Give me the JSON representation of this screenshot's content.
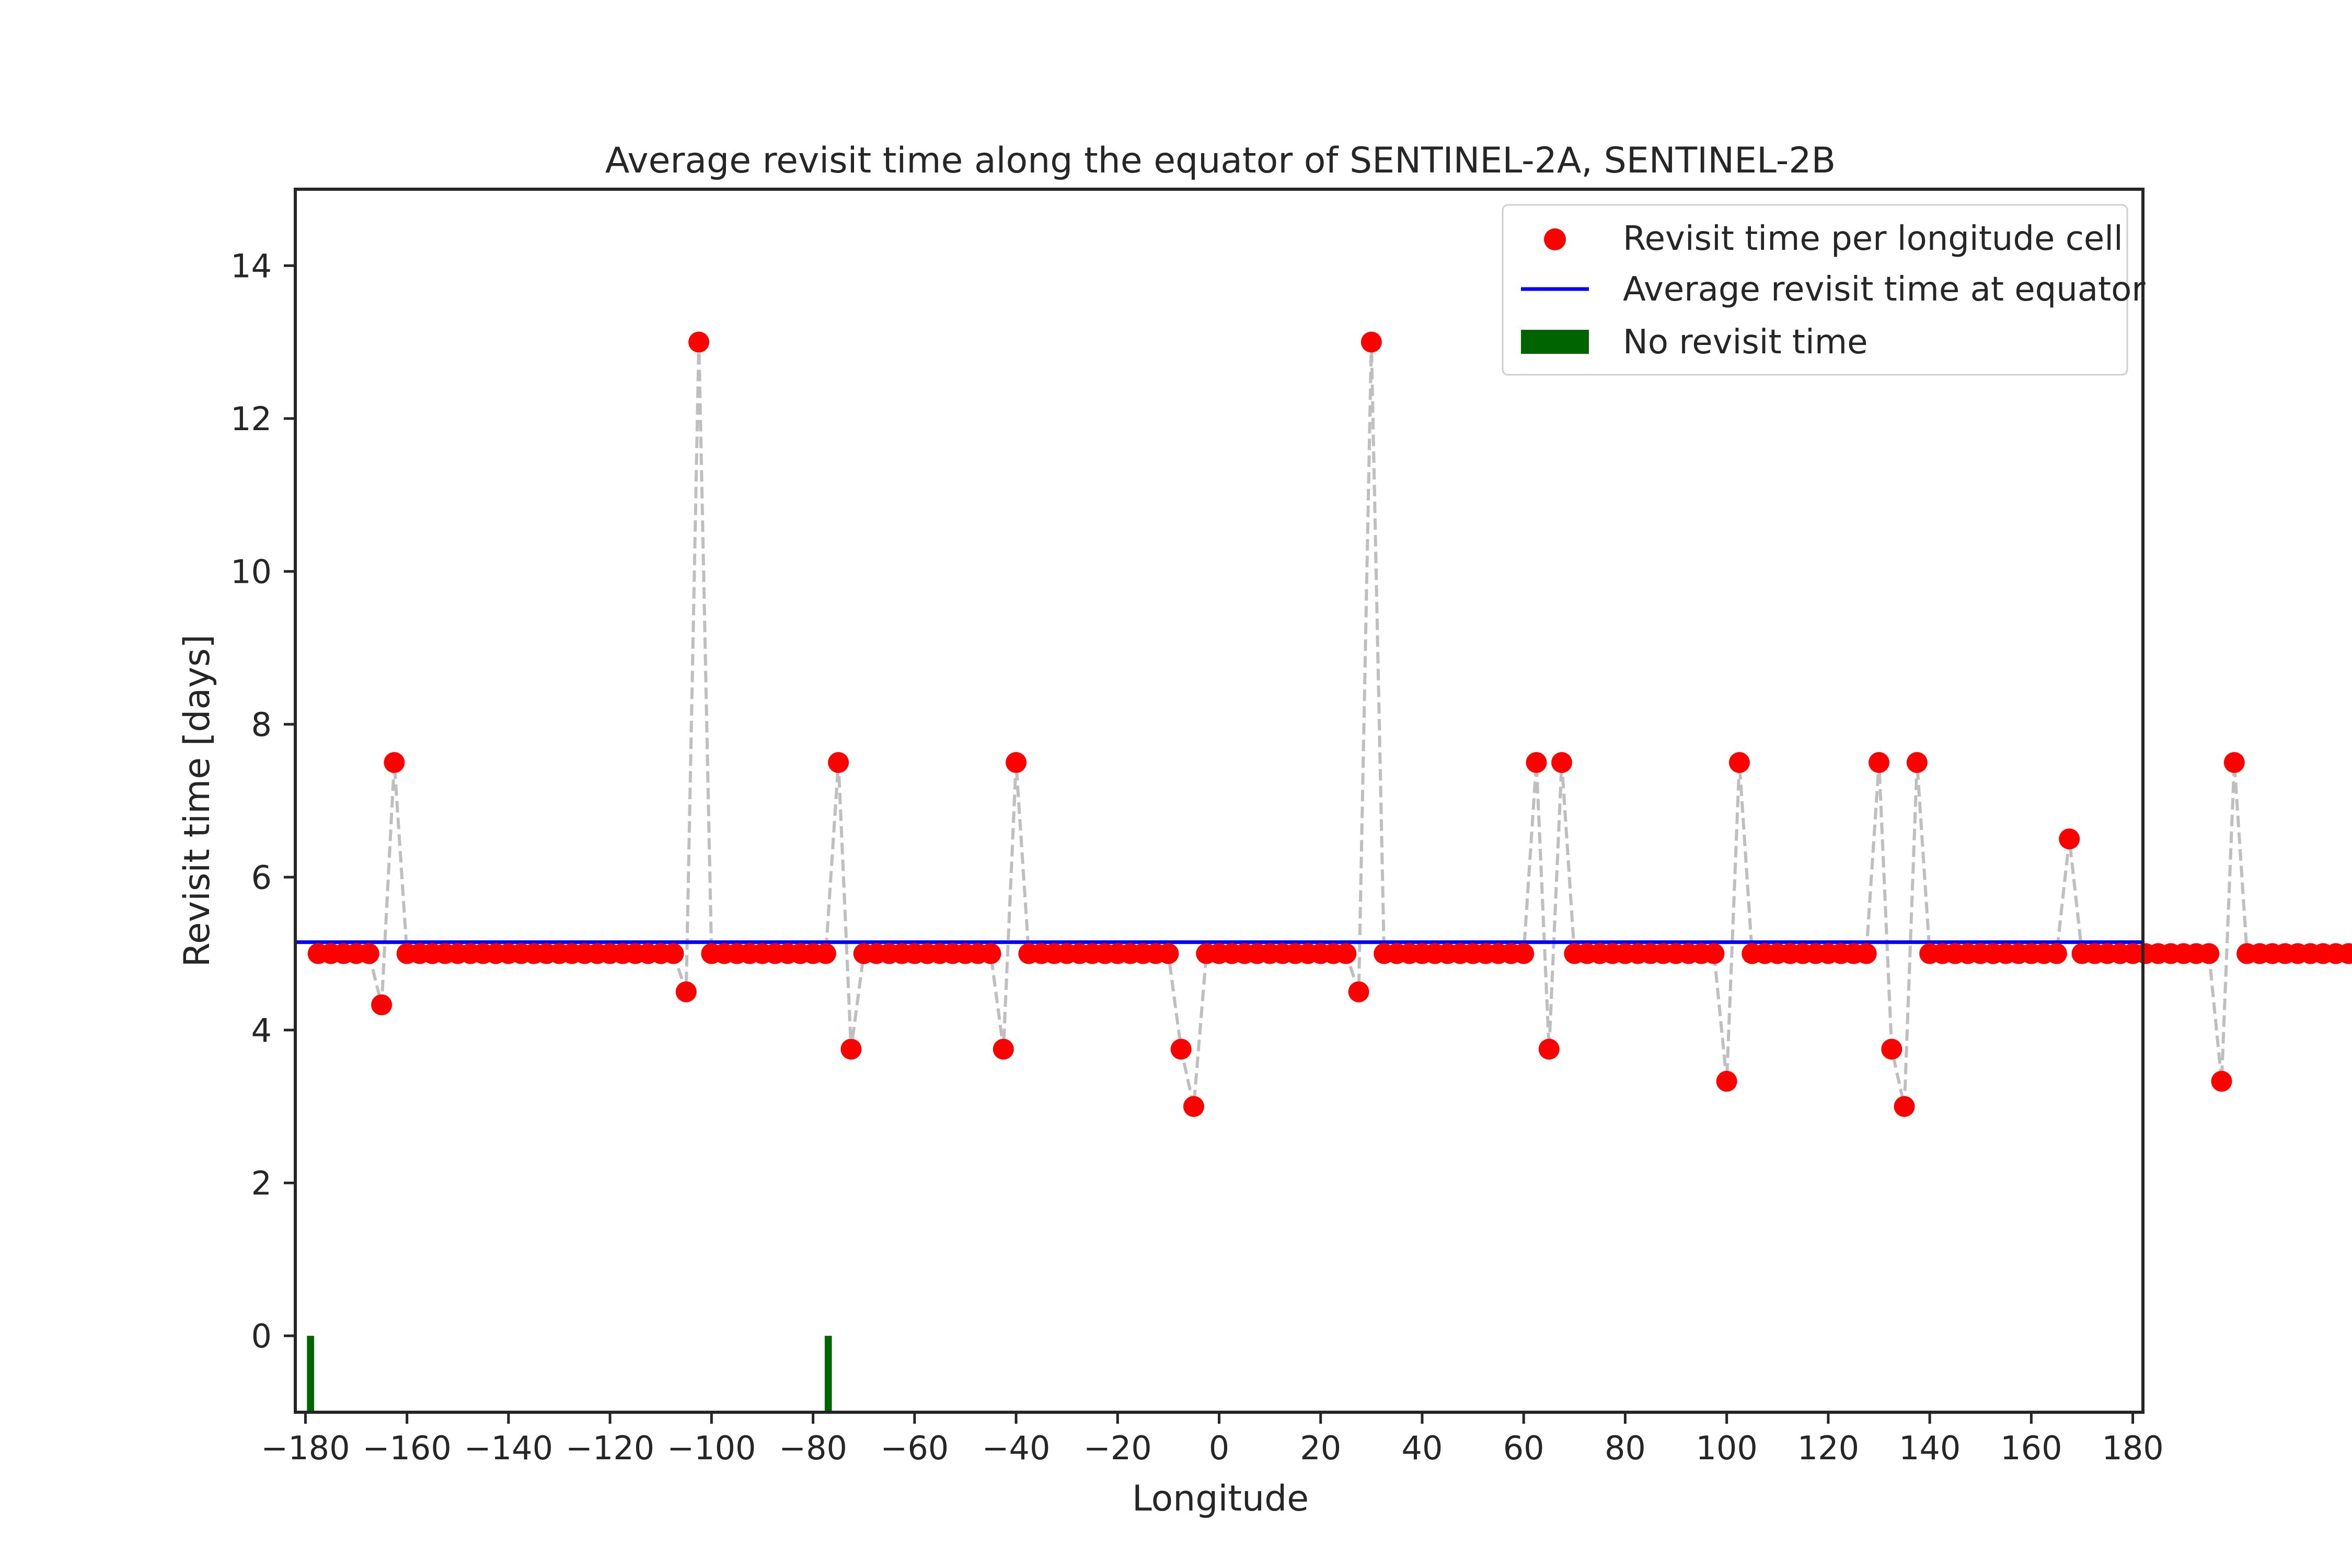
{
  "chart_data": {
    "type": "scatter",
    "title": "Average revisit time along the equator of SENTINEL-2A, SENTINEL-2B",
    "xlabel": "Longitude",
    "ylabel": "Revisit time [days]",
    "xlim": [
      -182,
      182
    ],
    "ylim": [
      -1,
      15
    ],
    "xticks": [
      -180,
      -160,
      -140,
      -120,
      -100,
      -80,
      -60,
      -40,
      -20,
      0,
      20,
      40,
      60,
      80,
      100,
      120,
      140,
      160,
      180
    ],
    "xtick_labels": [
      "−180",
      "−160",
      "−140",
      "−120",
      "−100",
      "−80",
      "−60",
      "−40",
      "−20",
      "0",
      "20",
      "40",
      "60",
      "80",
      "100",
      "120",
      "140",
      "160",
      "180"
    ],
    "yticks": [
      0,
      2,
      4,
      6,
      8,
      10,
      12,
      14
    ],
    "ytick_labels": [
      "0",
      "2",
      "4",
      "6",
      "8",
      "10",
      "12",
      "14"
    ],
    "grid": false,
    "legend_position": "top-right",
    "colors": {
      "points": "#ff0000",
      "connector": "#bfbfbf",
      "average_line": "#0000ff",
      "no_revisit": "#006400",
      "axes": "#262626"
    },
    "series": [
      {
        "name": "Revisit time per longitude cell",
        "kind": "scatter",
        "x_start": -177.5,
        "x_step": 2.5,
        "values": [
          5,
          5,
          5,
          5,
          5,
          4.33,
          7.5,
          5,
          5,
          5,
          5,
          5,
          5,
          5,
          5,
          5,
          5,
          5,
          5,
          5,
          5,
          5,
          5,
          5,
          5,
          5,
          5,
          5,
          5,
          4.5,
          13,
          5,
          5,
          5,
          5,
          5,
          5,
          5,
          5,
          5,
          5,
          7.5,
          3.75,
          5,
          5,
          5,
          5,
          5,
          5,
          5,
          5,
          5,
          5,
          5,
          3.75,
          7.5,
          5,
          5,
          5,
          5,
          5,
          5,
          5,
          5,
          5,
          5,
          5,
          5,
          3.75,
          3,
          5,
          5,
          5,
          5,
          5,
          5,
          5,
          5,
          5,
          5,
          5,
          5,
          4.5,
          13,
          5,
          5,
          5,
          5,
          5,
          5,
          5,
          5,
          5,
          5,
          5,
          5,
          7.5,
          3.75,
          7.5,
          5,
          5,
          5,
          5,
          5,
          5,
          5,
          5,
          5,
          5,
          5,
          5,
          3.33,
          7.5,
          5,
          5,
          5,
          5,
          5,
          5,
          5,
          5,
          5,
          5,
          7.5,
          3.75,
          3,
          7.5,
          5,
          5,
          5,
          5,
          5,
          5,
          5,
          5,
          5,
          5,
          5,
          6.5,
          5,
          5,
          5,
          5,
          5,
          5,
          5,
          5,
          5,
          5,
          5,
          3.33,
          7.5,
          5,
          5,
          5,
          5,
          5,
          5,
          5,
          5,
          5,
          5
        ]
      },
      {
        "name": "Average revisit time at equator",
        "kind": "hline",
        "y": 5.15
      },
      {
        "name": "No revisit time",
        "kind": "bar",
        "x": [
          -179,
          -77
        ],
        "height": -1
      }
    ]
  }
}
